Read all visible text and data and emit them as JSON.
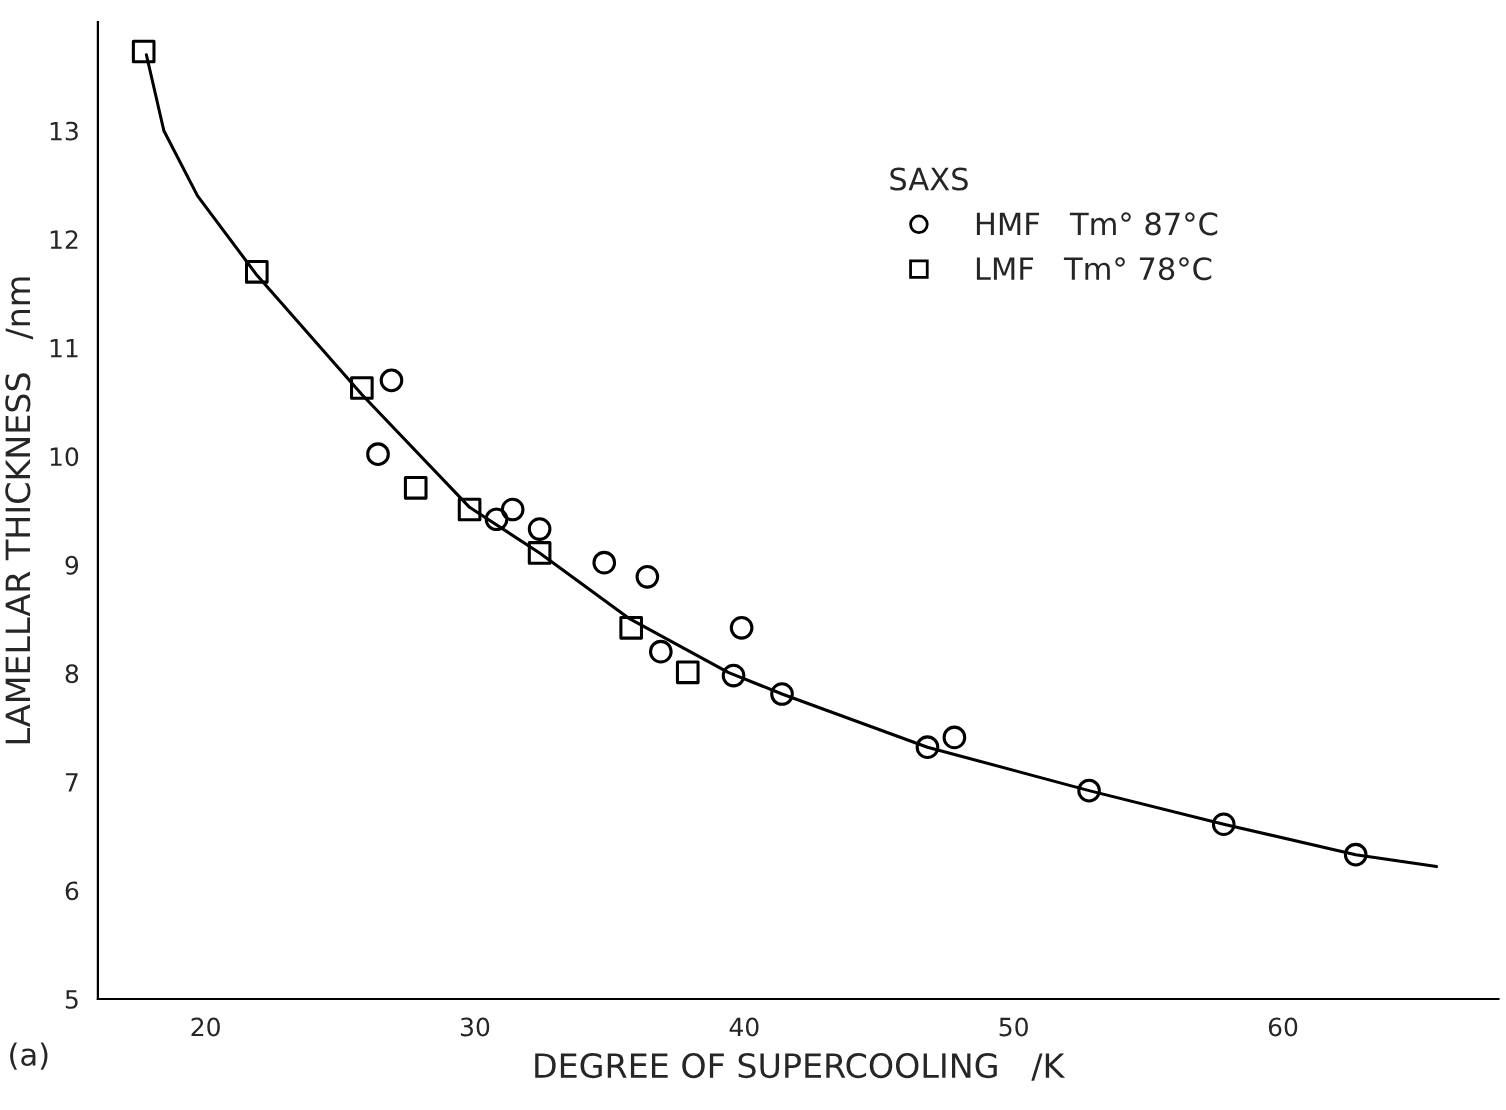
{
  "chart_data": {
    "type": "scatter",
    "xlabel": "DEGREE OF SUPERCOOLING   /K",
    "ylabel": "LAMELLAR THICKNESS   /nm",
    "legend_title": "SAXS",
    "xlim": [
      16,
      68
    ],
    "ylim": [
      5,
      14
    ],
    "xticks": [
      20,
      30,
      40,
      50,
      60
    ],
    "yticks": [
      5,
      6,
      7,
      8,
      9,
      10,
      11,
      12,
      13
    ],
    "grid": false,
    "legend": "top right",
    "annotations": [
      "(a)"
    ],
    "series": [
      {
        "name": "HMF   Tm° 87°C",
        "marker": "circle",
        "color": "#000000",
        "x": [
          26.9,
          26.4,
          30.8,
          31.4,
          32.4,
          34.8,
          36.4,
          36.9,
          39.9,
          39.6,
          41.4,
          46.8,
          47.8,
          52.8,
          57.8,
          62.7
        ],
        "values": [
          10.7,
          10.02,
          9.42,
          9.51,
          9.33,
          9.02,
          8.89,
          8.2,
          8.42,
          7.98,
          7.81,
          7.32,
          7.41,
          6.92,
          6.61,
          6.33
        ]
      },
      {
        "name": "LMF   Tm° 78°C",
        "marker": "square",
        "color": "#000000",
        "x": [
          17.7,
          21.9,
          25.8,
          27.8,
          29.8,
          32.4,
          35.8,
          37.9
        ],
        "values": [
          13.73,
          11.7,
          10.63,
          9.71,
          9.51,
          9.11,
          8.42,
          8.01
        ]
      },
      {
        "type": "line",
        "marker": "none",
        "line_style": "solid",
        "color": "#000000",
        "x": [
          17.8,
          18.45,
          19.7,
          21.9,
          25.8,
          29.8,
          32.4,
          35.7,
          39.4,
          41.4,
          46.8,
          52.8,
          57.8,
          62.7,
          65.7
        ],
        "values": [
          13.7,
          13.0,
          12.4,
          11.67,
          10.57,
          9.53,
          9.11,
          8.51,
          8.01,
          7.81,
          7.32,
          6.92,
          6.61,
          6.33,
          6.22
        ]
      }
    ]
  }
}
